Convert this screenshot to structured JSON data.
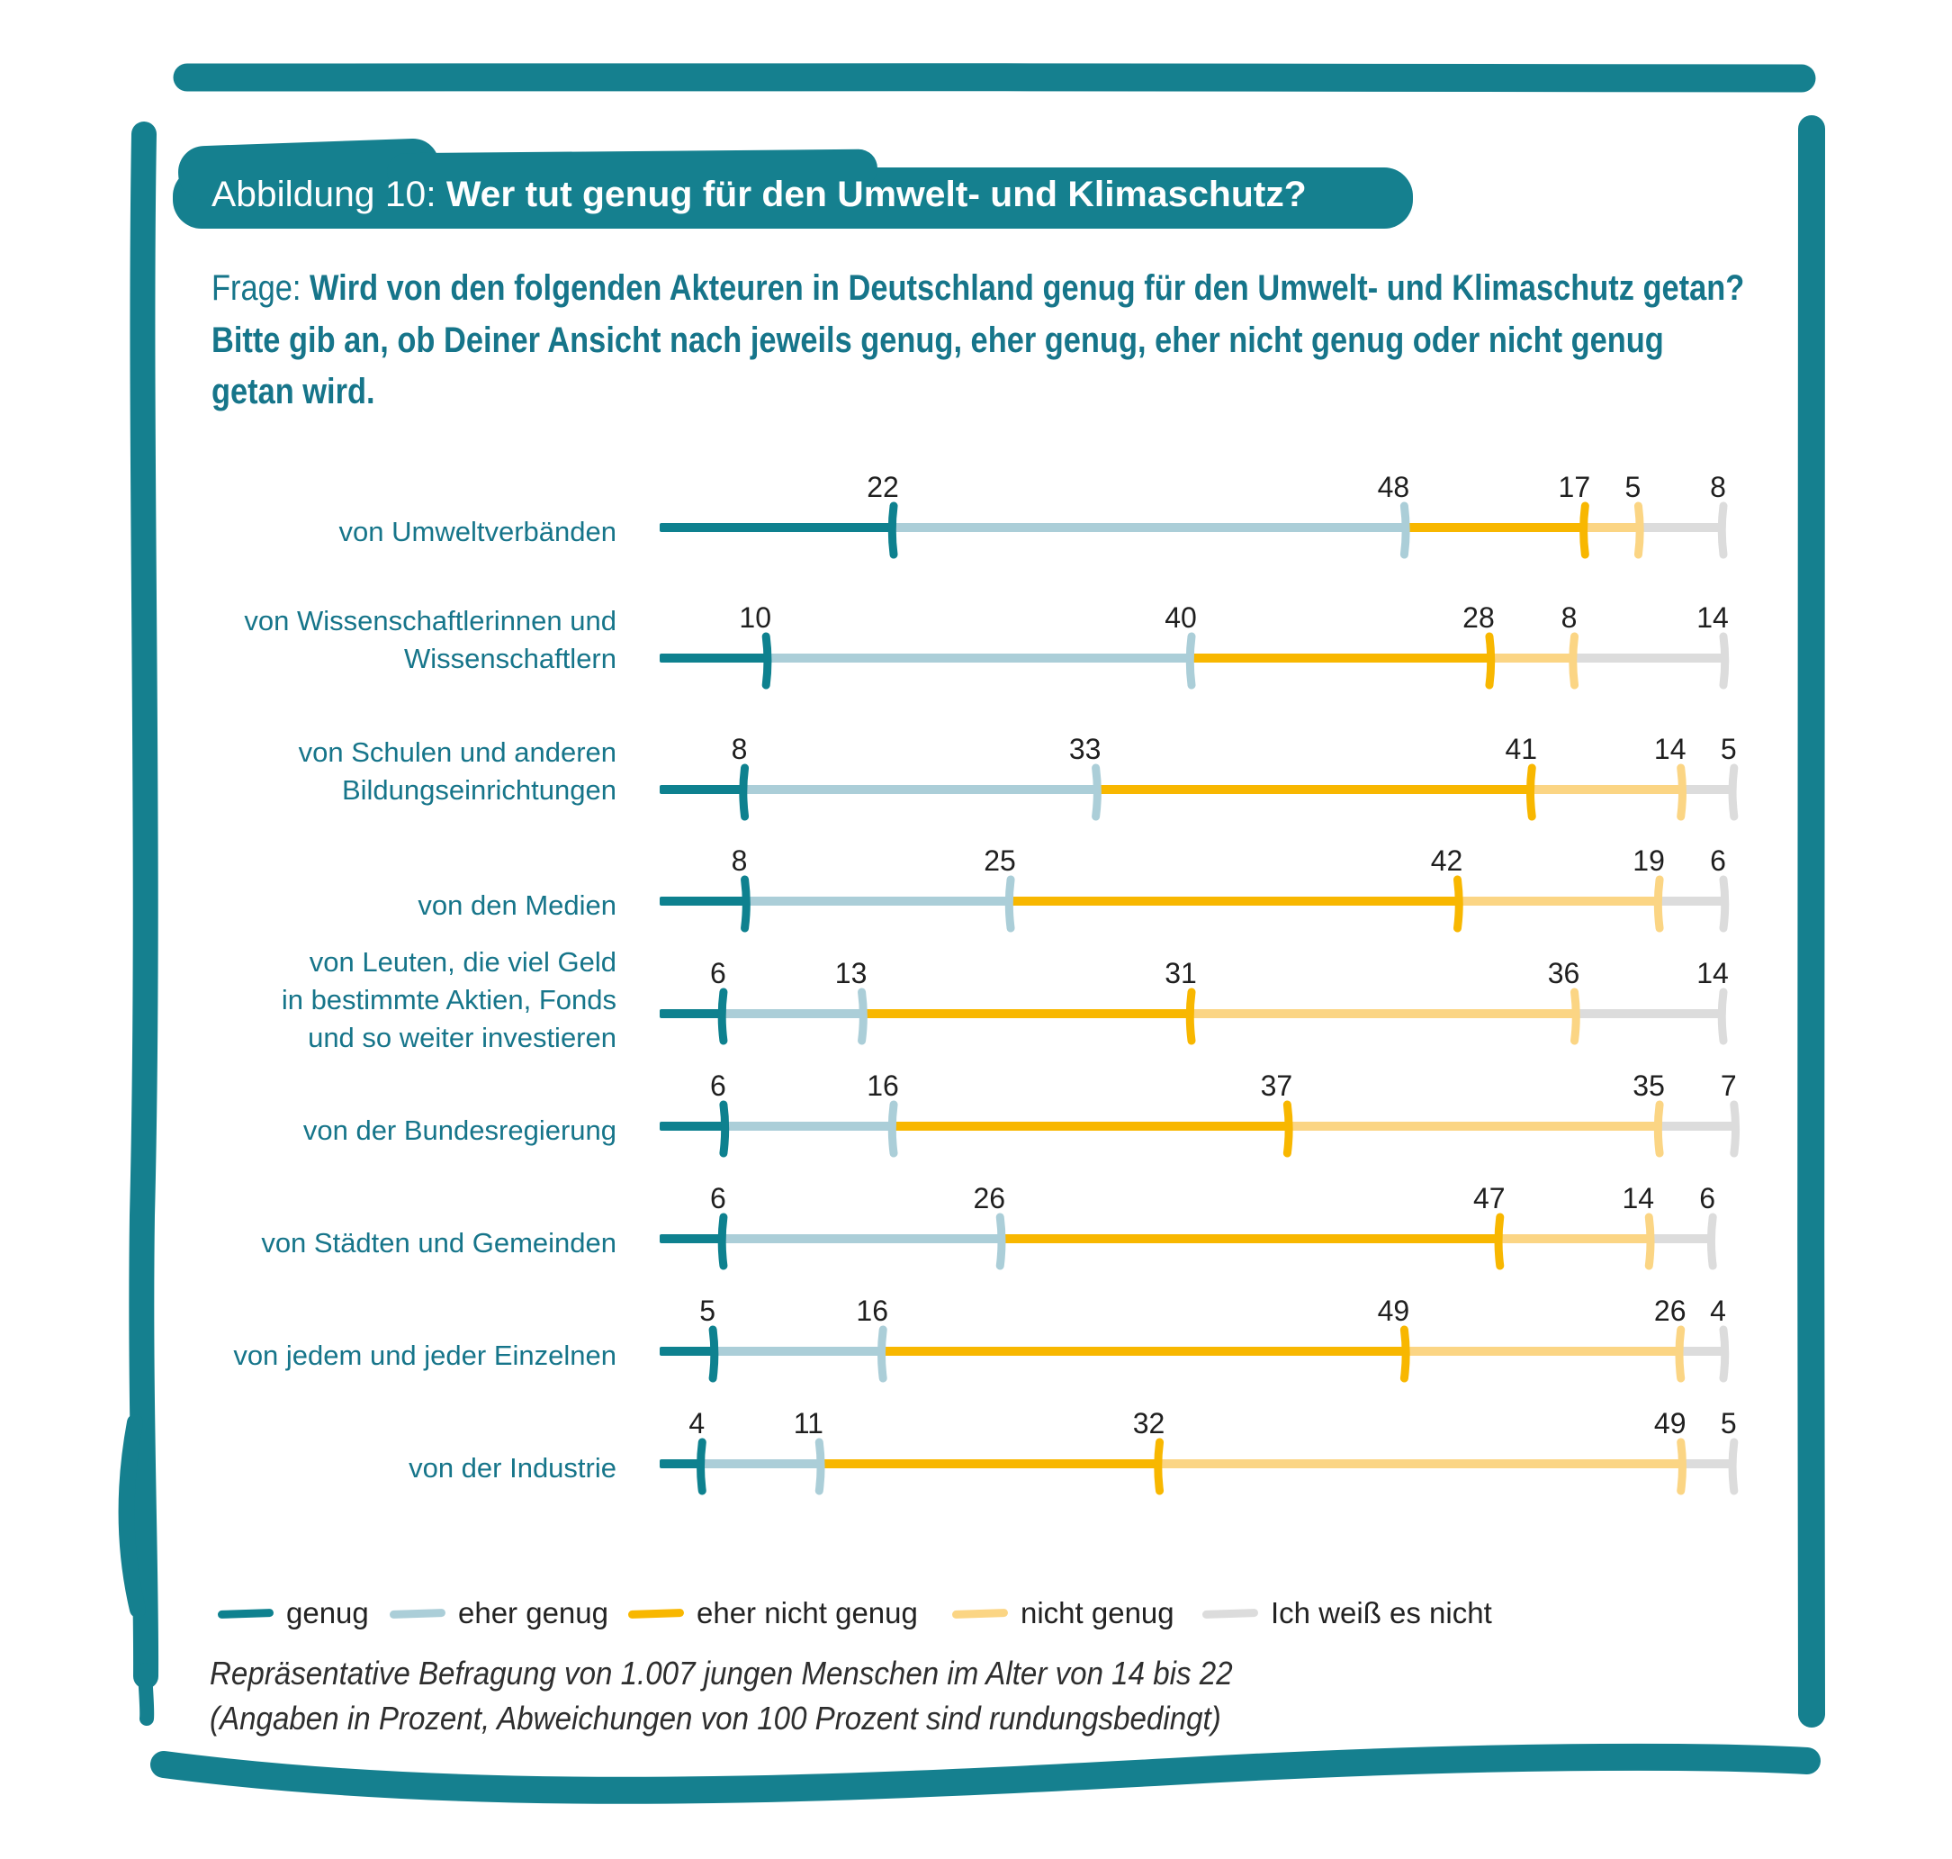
{
  "colors": {
    "frame_teal": "#15808F",
    "text_teal": "#16758A",
    "genug": "#0E818F",
    "eher_genug": "#ABCED8",
    "eher_nicht_genug": "#F8B700",
    "nicht_genug": "#FBD584",
    "weiss_nicht": "#DCDCDC",
    "number_text": "#1F1F1F",
    "legend_text": "#222222",
    "footer_text": "#2E2E2E"
  },
  "title": {
    "prefix": "Abbildung 10: ",
    "title": "Wer tut genug für den Umwelt- und Klimaschutz?"
  },
  "question": {
    "prefix": "Frage: ",
    "lines": [
      "Wird von den folgenden Akteuren in Deutschland genug für den Umwelt- und Klimaschutz getan?",
      "Bitte gib an, ob Deiner Ansicht nach jeweils genug, eher genug, eher nicht genug oder nicht genug",
      "getan wird."
    ]
  },
  "chart_data": {
    "type": "bar",
    "subtype": "stacked-horizontal-line",
    "unit": "percent",
    "xlim": [
      0,
      100
    ],
    "series_labels": [
      "genug",
      "eher genug",
      "eher nicht genug",
      "nicht genug",
      "Ich weiß es nicht"
    ],
    "categories": [
      "von Umweltverbänden",
      "von Wissenschaftlerinnen und Wissenschaftlern",
      "von Schulen und anderen Bildungseinrichtungen",
      "von den Medien",
      "von Leuten, die viel Geld in bestimmte Aktien, Fonds und so weiter investieren",
      "von der Bundesregierung",
      "von Städten und Gemeinden",
      "von jedem und jeder Einzelnen",
      "von der Industrie"
    ],
    "category_label_lines": [
      [
        "von Umweltverbänden"
      ],
      [
        "von Wissenschaftlerinnen und",
        "Wissenschaftlern"
      ],
      [
        "von Schulen und anderen",
        "Bildungseinrichtungen"
      ],
      [
        "von den Medien"
      ],
      [
        "von Leuten, die viel Geld",
        "in bestimmte Aktien, Fonds",
        "und so weiter investieren"
      ],
      [
        "von der Bundesregierung"
      ],
      [
        "von Städten und Gemeinden"
      ],
      [
        "von jedem und jeder Einzelnen"
      ],
      [
        "von der Industrie"
      ]
    ],
    "series": [
      {
        "name": "genug",
        "values": [
          22,
          10,
          8,
          8,
          6,
          6,
          6,
          5,
          4
        ]
      },
      {
        "name": "eher genug",
        "values": [
          48,
          40,
          33,
          25,
          13,
          16,
          26,
          16,
          11
        ]
      },
      {
        "name": "eher nicht genug",
        "values": [
          17,
          28,
          41,
          42,
          31,
          37,
          47,
          49,
          32
        ]
      },
      {
        "name": "nicht genug",
        "values": [
          5,
          8,
          14,
          19,
          36,
          35,
          14,
          26,
          49
        ]
      },
      {
        "name": "Ich weiß es nicht",
        "values": [
          8,
          14,
          5,
          6,
          14,
          7,
          6,
          4,
          5
        ]
      }
    ]
  },
  "legend": {
    "items": [
      {
        "label": "genug",
        "color_key": "genug"
      },
      {
        "label": "eher genug",
        "color_key": "eher_genug"
      },
      {
        "label": "eher nicht genug",
        "color_key": "eher_nicht_genug"
      },
      {
        "label": "nicht genug",
        "color_key": "nicht_genug"
      },
      {
        "label": "Ich weiß es nicht",
        "color_key": "weiss_nicht"
      }
    ]
  },
  "footer": {
    "line1": "Repräsentative Befragung von 1.007 jungen Menschen im Alter von 14 bis 22",
    "line2": "(Angaben in Prozent, Abweichungen von 100 Prozent sind rundungsbedingt)"
  }
}
